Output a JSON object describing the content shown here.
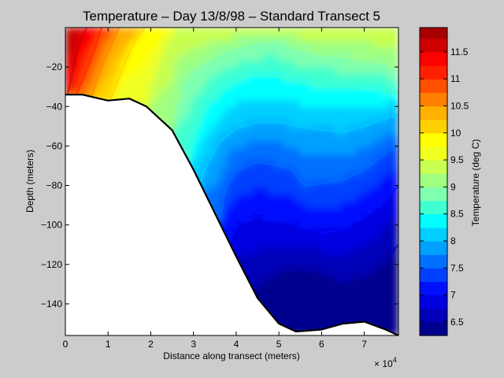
{
  "chart_data": [
    {
      "type": "filled-contour",
      "title": "Temperature – Day 13/8/98 – Standard Transect 5",
      "xlabel": "Distance along transect (meters)",
      "ylabel": "Depth (meters)",
      "x_exponent_label": "× 10",
      "x_exponent_power": "4",
      "x_ticks": [
        "0",
        "1",
        "2",
        "3",
        "4",
        "5",
        "6",
        "7"
      ],
      "x_tick_values": [
        0,
        1,
        2,
        3,
        4,
        5,
        6,
        7
      ],
      "y_ticks": [
        "−20",
        "−40",
        "−60",
        "−80",
        "−100",
        "−120",
        "−140"
      ],
      "y_tick_values": [
        -20,
        -40,
        -60,
        -80,
        -100,
        -120,
        -140
      ],
      "xlim": [
        0,
        7.8
      ],
      "ylim": [
        -156,
        0
      ],
      "seabed": {
        "x": [
          0,
          0.4,
          1.0,
          1.5,
          1.9,
          2.5,
          3.0,
          3.5,
          4.0,
          4.5,
          5.0,
          5.4,
          6.0,
          6.5,
          7.0,
          7.5,
          7.8
        ],
        "depth": [
          -34,
          -34,
          -37,
          -36,
          -40,
          -52,
          -72,
          -94,
          -116,
          -137,
          -150,
          -154,
          -153,
          -150,
          -149,
          -153,
          -156
        ]
      },
      "contour_levels": [
        6.5,
        7.0,
        7.5,
        8.0,
        8.5,
        9.0,
        9.5,
        10.0,
        10.5,
        11.0,
        11.5
      ],
      "isotherms": [
        {
          "level": 11.5,
          "x": [
            0.05,
            0.3,
            0.5
          ],
          "depth": [
            -34,
            -10,
            0
          ]
        },
        {
          "level": 11.0,
          "x": [
            0.25,
            0.45,
            0.7,
            0.85
          ],
          "depth": [
            -34,
            -24,
            -10,
            0
          ]
        },
        {
          "level": 10.5,
          "x": [
            0.6,
            0.8,
            1.05,
            1.25
          ],
          "depth": [
            -36,
            -22,
            -10,
            0
          ]
        },
        {
          "level": 10.0,
          "x": [
            1.05,
            1.25,
            1.45,
            1.65,
            1.85
          ],
          "depth": [
            -36,
            -26,
            -15,
            -6,
            0
          ]
        },
        {
          "level": 9.5,
          "x": [
            1.85,
            2.0,
            2.3,
            2.6
          ],
          "depth": [
            -39,
            -28,
            -10,
            0
          ]
        },
        {
          "level": 9.0,
          "x": [
            2.5,
            2.55,
            2.75,
            3.0,
            3.5,
            3.9,
            4.3,
            4.7,
            5.0,
            5.4,
            5.8,
            6.3,
            7.0,
            7.5,
            7.8
          ],
          "depth": [
            -52,
            -40,
            -28,
            -20,
            -14,
            -10,
            -8,
            -6,
            -5,
            -10,
            -12,
            -14,
            -16,
            -18,
            -20
          ]
        },
        {
          "level": 8.5,
          "x": [
            2.9,
            3.0,
            3.3,
            3.7,
            4.1,
            4.5,
            5.0,
            5.5,
            6.0,
            6.5,
            7.0,
            7.8
          ],
          "depth": [
            -67,
            -55,
            -40,
            -32,
            -26,
            -24,
            -25,
            -28,
            -30,
            -30,
            -31,
            -33
          ]
        },
        {
          "level": 8.0,
          "x": [
            3.15,
            3.3,
            3.6,
            4.0,
            4.5,
            5.0,
            5.5,
            6.0,
            6.5,
            7.0,
            7.5,
            7.8
          ],
          "depth": [
            -80,
            -70,
            -58,
            -51,
            -48,
            -48,
            -50,
            -52,
            -53,
            -50,
            -46,
            -44
          ]
        },
        {
          "level": 7.5,
          "x": [
            3.6,
            3.75,
            4.0,
            4.5,
            5.0,
            5.3,
            5.6,
            6.0,
            6.5,
            7.0,
            7.5,
            7.8
          ],
          "depth": [
            -97,
            -82,
            -72,
            -68,
            -70,
            -72,
            -80,
            -79,
            -77,
            -72,
            -64,
            -60
          ]
        },
        {
          "level": 7.0,
          "x": [
            3.85,
            4.0,
            4.5,
            5.0,
            5.5,
            6.0,
            6.5,
            7.0,
            7.5,
            7.8
          ],
          "depth": [
            -108,
            -100,
            -96,
            -98,
            -100,
            -104,
            -102,
            -96,
            -88,
            -80
          ]
        },
        {
          "level": 6.5,
          "x": [
            4.35,
            4.7,
            5.0,
            5.5,
            6.0,
            6.5,
            7.0,
            7.5,
            7.8
          ],
          "depth": [
            -132,
            -128,
            -124,
            -122,
            -124,
            -128,
            -126,
            -118,
            -110
          ]
        }
      ]
    },
    {
      "type": "colorbar",
      "label": "Temperature (deg C)",
      "tick_labels": [
        "6.5",
        "7",
        "7.5",
        "8",
        "8.5",
        "9",
        "9.5",
        "10",
        "10.5",
        "11",
        "11.5"
      ],
      "tick_values": [
        6.5,
        7,
        7.5,
        8,
        8.5,
        9,
        9.5,
        10,
        10.5,
        11,
        11.5
      ],
      "range": [
        6.25,
        11.95
      ],
      "bins": [
        {
          "from": 6.25,
          "to": 6.5,
          "color": "#00008f"
        },
        {
          "from": 6.5,
          "to": 6.75,
          "color": "#0000b8"
        },
        {
          "from": 6.75,
          "to": 7.0,
          "color": "#0000e0"
        },
        {
          "from": 7.0,
          "to": 7.25,
          "color": "#0010ff"
        },
        {
          "from": 7.25,
          "to": 7.5,
          "color": "#0040ff"
        },
        {
          "from": 7.5,
          "to": 7.75,
          "color": "#0070ff"
        },
        {
          "from": 7.75,
          "to": 8.0,
          "color": "#00a0ff"
        },
        {
          "from": 8.0,
          "to": 8.25,
          "color": "#00cfff"
        },
        {
          "from": 8.25,
          "to": 8.5,
          "color": "#00ffff"
        },
        {
          "from": 8.5,
          "to": 8.75,
          "color": "#40ffd0"
        },
        {
          "from": 8.75,
          "to": 9.0,
          "color": "#80ffb0"
        },
        {
          "from": 9.0,
          "to": 9.25,
          "color": "#a0ff80"
        },
        {
          "from": 9.25,
          "to": 9.5,
          "color": "#c8ff50"
        },
        {
          "from": 9.5,
          "to": 9.75,
          "color": "#f0ff20"
        },
        {
          "from": 9.75,
          "to": 10.0,
          "color": "#ffff00"
        },
        {
          "from": 10.0,
          "to": 10.25,
          "color": "#ffd000"
        },
        {
          "from": 10.25,
          "to": 10.5,
          "color": "#ffb000"
        },
        {
          "from": 10.5,
          "to": 10.75,
          "color": "#ff8000"
        },
        {
          "from": 10.75,
          "to": 11.0,
          "color": "#ff5000"
        },
        {
          "from": 11.0,
          "to": 11.25,
          "color": "#ff2000"
        },
        {
          "from": 11.25,
          "to": 11.5,
          "color": "#ff0000"
        },
        {
          "from": 11.5,
          "to": 11.75,
          "color": "#d00000"
        },
        {
          "from": 11.75,
          "to": 11.95,
          "color": "#a80000"
        }
      ]
    }
  ]
}
